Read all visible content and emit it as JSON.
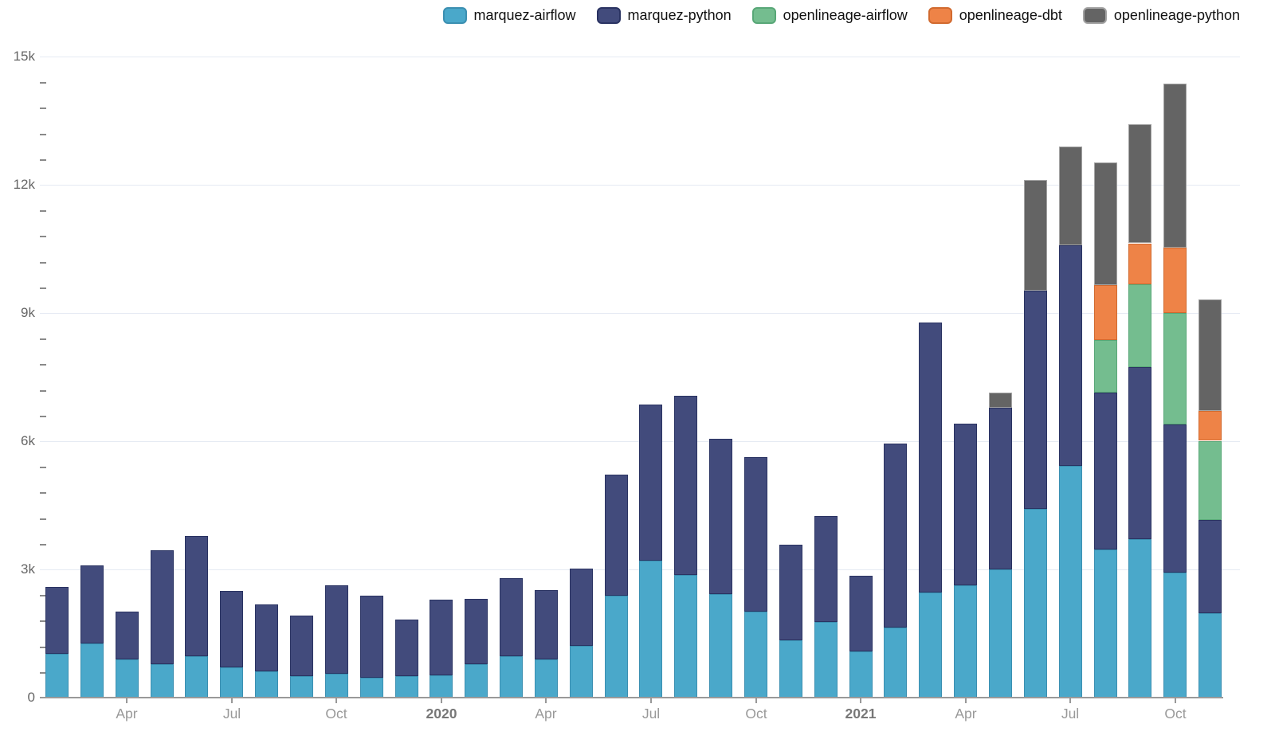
{
  "chart_data": {
    "type": "bar",
    "stacked": true,
    "title": "",
    "xlabel": "",
    "ylabel": "",
    "grid": "horizontal",
    "legend_position": "top",
    "ylim": [
      0,
      15000
    ],
    "y_ticks": [
      {
        "value": 0,
        "label": "0"
      },
      {
        "value": 3000,
        "label": "3k"
      },
      {
        "value": 6000,
        "label": "6k"
      },
      {
        "value": 9000,
        "label": "9k"
      },
      {
        "value": 12000,
        "label": "12k"
      },
      {
        "value": 15000,
        "label": "15k"
      }
    ],
    "y_minor_interval": 600,
    "categories": [
      "2019-02",
      "2019-03",
      "2019-04",
      "2019-05",
      "2019-06",
      "2019-07",
      "2019-08",
      "2019-09",
      "2019-10",
      "2019-11",
      "2019-12",
      "2020-01",
      "2020-02",
      "2020-03",
      "2020-04",
      "2020-05",
      "2020-06",
      "2020-07",
      "2020-08",
      "2020-09",
      "2020-10",
      "2020-11",
      "2020-12",
      "2021-01",
      "2021-02",
      "2021-03",
      "2021-04",
      "2021-05",
      "2021-06",
      "2021-07",
      "2021-08",
      "2021-09",
      "2021-10",
      "2021-11"
    ],
    "x_ticks": [
      {
        "bar_index": 2,
        "label": "Apr",
        "bold": false
      },
      {
        "bar_index": 5,
        "label": "Jul",
        "bold": false
      },
      {
        "bar_index": 8,
        "label": "Oct",
        "bold": false
      },
      {
        "bar_index": 11,
        "label": "2020",
        "bold": true
      },
      {
        "bar_index": 14,
        "label": "Apr",
        "bold": false
      },
      {
        "bar_index": 17,
        "label": "Jul",
        "bold": false
      },
      {
        "bar_index": 20,
        "label": "Oct",
        "bold": false
      },
      {
        "bar_index": 23,
        "label": "2021",
        "bold": true
      },
      {
        "bar_index": 26,
        "label": "Apr",
        "bold": false
      },
      {
        "bar_index": 29,
        "label": "Jul",
        "bold": false
      },
      {
        "bar_index": 32,
        "label": "Oct",
        "bold": false
      }
    ],
    "series": [
      {
        "name": "marquez-airflow",
        "color": "#4aa8ca",
        "border": "#3b8fb1",
        "values": [
          1020,
          1270,
          890,
          780,
          970,
          710,
          610,
          500,
          560,
          470,
          500,
          520,
          780,
          970,
          890,
          1210,
          2380,
          3200,
          2870,
          2420,
          2010,
          1340,
          1770,
          1080,
          1640,
          2460,
          2630,
          3000,
          4410,
          5420,
          3460,
          3710,
          2920,
          1970
        ]
      },
      {
        "name": "marquez-python",
        "color": "#424b7c",
        "border": "#2a3362",
        "values": [
          1570,
          1820,
          1120,
          2670,
          2810,
          1790,
          1570,
          1420,
          2070,
          1910,
          1320,
          1770,
          1530,
          1820,
          1620,
          1810,
          2830,
          3650,
          4190,
          3630,
          3610,
          2240,
          2480,
          1770,
          4300,
          6310,
          3790,
          3780,
          5120,
          5160,
          3670,
          4020,
          3480,
          2180
        ]
      },
      {
        "name": "openlineage-airflow",
        "color": "#74bd8f",
        "border": "#58a777",
        "values": [
          0,
          0,
          0,
          0,
          0,
          0,
          0,
          0,
          0,
          0,
          0,
          0,
          0,
          0,
          0,
          0,
          0,
          0,
          0,
          0,
          0,
          0,
          0,
          0,
          0,
          0,
          0,
          0,
          0,
          0,
          1230,
          1950,
          2600,
          1860
        ]
      },
      {
        "name": "openlineage-dbt",
        "color": "#ee8347",
        "border": "#d16a2f",
        "values": [
          0,
          0,
          0,
          0,
          0,
          0,
          0,
          0,
          0,
          0,
          0,
          0,
          0,
          0,
          0,
          0,
          0,
          0,
          0,
          0,
          0,
          0,
          0,
          0,
          0,
          0,
          0,
          0,
          0,
          0,
          1300,
          950,
          1520,
          690
        ]
      },
      {
        "name": "openlineage-python",
        "color": "#646464",
        "border": "#a3a3a3",
        "values": [
          0,
          0,
          0,
          0,
          0,
          0,
          0,
          0,
          0,
          0,
          0,
          0,
          0,
          0,
          0,
          0,
          0,
          0,
          0,
          0,
          0,
          0,
          0,
          0,
          0,
          0,
          0,
          350,
          2590,
          2320,
          2870,
          2780,
          3840,
          2610
        ]
      }
    ]
  },
  "colors": {
    "background": "#ffffff",
    "gridline": "#e5eaf3",
    "axis": "#999999",
    "tick_label": "#999999",
    "year_label": "#777777",
    "y_label": "#666666"
  }
}
